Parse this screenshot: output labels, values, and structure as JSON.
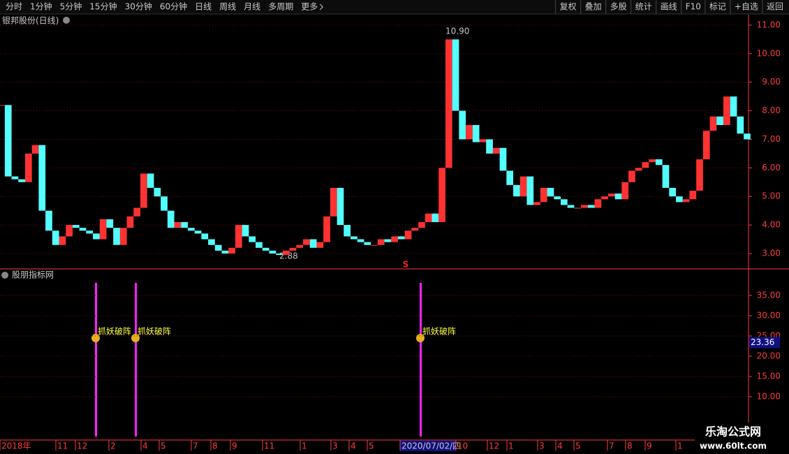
{
  "toolbar": {
    "periods": [
      "分时",
      "1分钟",
      "5分钟",
      "15分钟",
      "30分钟",
      "60分钟",
      "日线",
      "周线",
      "月线",
      "多周期",
      "更多"
    ],
    "actions": [
      "复权",
      "叠加",
      "多股",
      "统计",
      "画线",
      "F10",
      "标记",
      "+自选",
      "返回"
    ]
  },
  "chart_data": {
    "type": "price",
    "title": "银邦股份(日线)",
    "values": [
      8.2,
      5.7,
      5.6,
      5.5,
      6.5,
      6.8,
      4.5,
      3.8,
      3.3,
      3.6,
      4.0,
      3.9,
      3.8,
      3.7,
      3.5,
      4.2,
      3.9,
      3.3,
      3.9,
      4.3,
      4.6,
      5.8,
      5.3,
      5.0,
      4.5,
      3.9,
      4.1,
      3.9,
      3.8,
      3.7,
      3.5,
      3.3,
      3.1,
      3.0,
      3.2,
      4.0,
      3.6,
      3.4,
      3.2,
      3.1,
      3.0,
      2.95,
      3.1,
      3.2,
      3.3,
      3.5,
      3.2,
      3.4,
      4.3,
      5.3,
      4.0,
      3.6,
      3.5,
      3.4,
      3.3,
      3.3,
      3.5,
      3.4,
      3.6,
      3.5,
      3.8,
      3.9,
      4.1,
      4.4,
      4.1,
      6.0,
      10.5,
      8.0,
      7.0,
      7.5,
      6.9,
      7.0,
      6.5,
      6.7,
      5.9,
      5.4,
      5.0,
      5.7,
      4.7,
      4.8,
      5.3,
      5.0,
      4.9,
      4.7,
      4.6,
      4.6,
      4.7,
      4.6,
      4.9,
      5.0,
      5.1,
      4.9,
      5.5,
      5.9,
      6.0,
      6.2,
      6.3,
      6.1,
      5.3,
      5.0,
      4.8,
      4.9,
      5.2,
      6.3,
      7.3,
      7.8,
      7.5,
      8.5,
      7.8,
      7.2,
      7.0
    ],
    "ylim": [
      2.5,
      11.4
    ],
    "yticks": [
      {
        "value": 3,
        "label": "3.00"
      },
      {
        "value": 4,
        "label": "4.00"
      },
      {
        "value": 5,
        "label": "5.00"
      },
      {
        "value": 6,
        "label": "6.00"
      },
      {
        "value": 7,
        "label": "7.00"
      },
      {
        "value": 8,
        "label": "8.00"
      },
      {
        "value": 9,
        "label": "9.00"
      },
      {
        "value": 10,
        "label": "10.00"
      },
      {
        "value": 11,
        "label": "11.00"
      }
    ],
    "high": {
      "value": 10.9,
      "label": "10.90"
    },
    "low": {
      "value": 2.88,
      "label": "2.88"
    },
    "marker": "S"
  },
  "indicator": {
    "title": "股朋指标网",
    "ylim": [
      0,
      40
    ],
    "yticks": [
      {
        "value": 10,
        "label": "10.00"
      },
      {
        "value": 15,
        "label": "15.00"
      },
      {
        "value": 20,
        "label": "20.00"
      },
      {
        "value": 25,
        "label": "25.00"
      },
      {
        "value": 30,
        "label": "30.00"
      },
      {
        "value": 35,
        "label": "35.00"
      }
    ],
    "current": {
      "value": 23.36,
      "label": "23.36"
    },
    "signals": [
      "抓妖破阵",
      "抓妖破阵",
      "抓妖破阵"
    ]
  },
  "x_axis": [
    "2018年",
    "11",
    "12",
    "2",
    "4",
    "5",
    "7",
    "8",
    "9",
    "11",
    "1",
    "3",
    "4",
    "5",
    "2020/07/02/四",
    "10",
    "12",
    "1",
    "3",
    "4",
    "5",
    "7",
    "8",
    "9",
    "1"
  ],
  "watermark": {
    "name": "乐淘公式网",
    "url": "www.60lt.com"
  }
}
